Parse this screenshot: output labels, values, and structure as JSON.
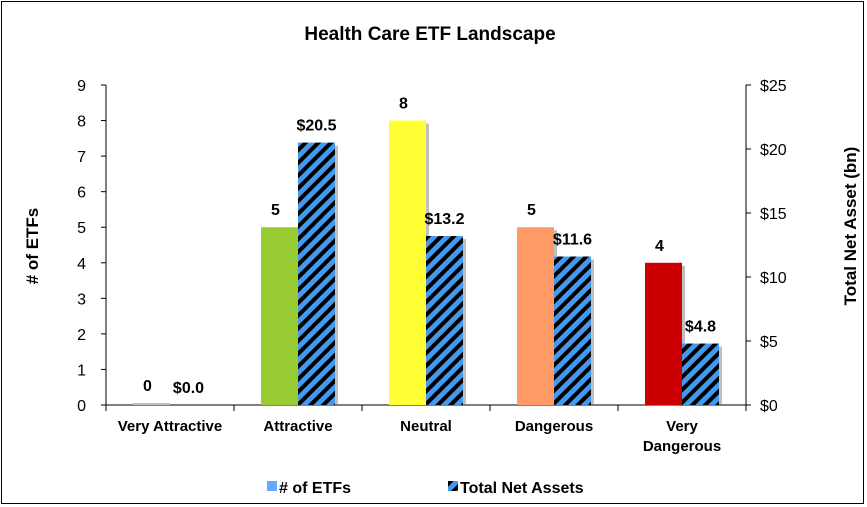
{
  "chart_data": {
    "type": "bar",
    "title": "Health Care ETF Landscape",
    "categories": [
      "Very Attractive",
      "Attractive",
      "Neutral",
      "Dangerous",
      "Very Dangerous"
    ],
    "category_lines": [
      [
        "Very Attractive"
      ],
      [
        "Attractive"
      ],
      [
        "Neutral"
      ],
      [
        "Dangerous"
      ],
      [
        "Very",
        "Dangerous"
      ]
    ],
    "series": [
      {
        "name": "# of ETFs",
        "axis": "left",
        "values": [
          0,
          5,
          8,
          5,
          4
        ],
        "labels": [
          "0",
          "5",
          "8",
          "5",
          "4"
        ],
        "colors": [
          "#bfbfbf",
          "#99cc33",
          "#ffff33",
          "#ff9966",
          "#cc0000"
        ],
        "legend_color": "#66aaff"
      },
      {
        "name": "Total Net Assets",
        "axis": "right",
        "values": [
          0.0,
          20.5,
          13.2,
          11.6,
          4.8
        ],
        "labels": [
          "$0.0",
          "$20.5",
          "$13.2",
          "$11.6",
          "$4.8"
        ],
        "pattern": "diagonal-stripes",
        "colors": [
          "#4499ee",
          "#000000"
        ]
      }
    ],
    "ylabel": "# of ETFs",
    "y2label": "Total Net Asset (bn)",
    "ylim": [
      0,
      9
    ],
    "y2lim": [
      0,
      25
    ],
    "yticks": [
      "0",
      "1",
      "2",
      "3",
      "4",
      "5",
      "6",
      "7",
      "8",
      "9"
    ],
    "y2ticks": [
      "$0",
      "$5",
      "$10",
      "$15",
      "$20",
      "$25"
    ],
    "grid": false,
    "legend_position": "bottom"
  }
}
